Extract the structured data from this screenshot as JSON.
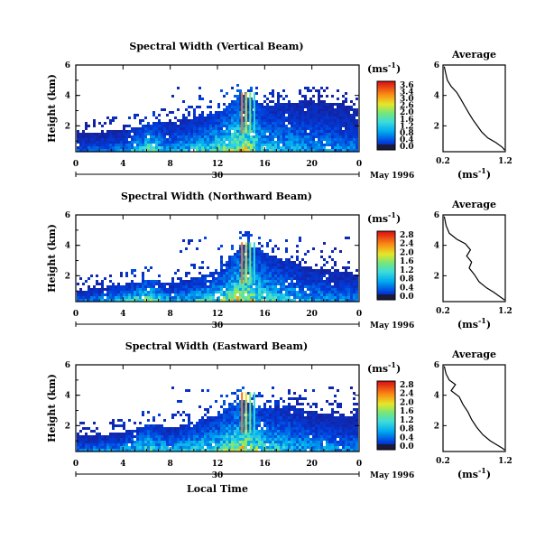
{
  "chart_data": [
    {
      "type": "heatmap",
      "title": "Spectral Width (Vertical Beam)",
      "ylabel": "Height (km)",
      "yticks": [
        "2",
        "4",
        "6"
      ],
      "ylim": [
        0.3,
        6.0
      ],
      "xticks": [
        "0",
        "4",
        "8",
        "12",
        "16",
        "20",
        "0"
      ],
      "xlim": [
        0,
        24
      ],
      "date_axis_label": "30",
      "date_text": "May 1996",
      "colorbar": {
        "unit": "(ms",
        "unit_sup": "-1",
        "unit_close": ")",
        "ticks": [
          "3.6",
          "3.4",
          "3.0",
          "2.6",
          "2.0",
          "1.6",
          "1.2",
          "0.8",
          "0.4",
          "0.0"
        ]
      },
      "echo_top_km": [
        {
          "t": 0,
          "h": 1.6
        },
        {
          "t": 2,
          "h": 1.7
        },
        {
          "t": 4,
          "h": 1.8
        },
        {
          "t": 6,
          "h": 2.2
        },
        {
          "t": 8,
          "h": 2.4
        },
        {
          "t": 10,
          "h": 2.6
        },
        {
          "t": 12,
          "h": 3.0
        },
        {
          "t": 14,
          "h": 4.2
        },
        {
          "t": 16,
          "h": 3.4
        },
        {
          "t": 18,
          "h": 3.6
        },
        {
          "t": 20,
          "h": 3.8
        },
        {
          "t": 22,
          "h": 3.6
        },
        {
          "t": 24,
          "h": 3.2
        }
      ],
      "width_peak_ms": [
        {
          "t": 0,
          "w": 1.0
        },
        {
          "t": 4,
          "w": 1.4
        },
        {
          "t": 6,
          "w": 2.8
        },
        {
          "t": 8,
          "w": 1.6
        },
        {
          "t": 12,
          "w": 2.6
        },
        {
          "t": 14,
          "w": 3.6
        },
        {
          "t": 16,
          "w": 2.0
        },
        {
          "t": 20,
          "w": 1.4
        },
        {
          "t": 24,
          "w": 1.2
        }
      ],
      "average": {
        "title": "Average",
        "xlabel": "(ms",
        "xlabel_sup": "-1",
        "xlabel_close": ")",
        "xticks": [
          "0.2",
          "1.2"
        ],
        "xlim": [
          0.2,
          1.2
        ],
        "yticks": [
          "2",
          "4",
          "6"
        ],
        "ylim": [
          0.3,
          6.0
        ],
        "profile": [
          {
            "w": 0.22,
            "h": 5.9
          },
          {
            "w": 0.24,
            "h": 5.5
          },
          {
            "w": 0.27,
            "h": 5.0
          },
          {
            "w": 0.33,
            "h": 4.6
          },
          {
            "w": 0.42,
            "h": 4.2
          },
          {
            "w": 0.48,
            "h": 3.8
          },
          {
            "w": 0.55,
            "h": 3.3
          },
          {
            "w": 0.62,
            "h": 2.8
          },
          {
            "w": 0.68,
            "h": 2.4
          },
          {
            "w": 0.75,
            "h": 2.0
          },
          {
            "w": 0.82,
            "h": 1.6
          },
          {
            "w": 0.92,
            "h": 1.2
          },
          {
            "w": 1.05,
            "h": 0.9
          },
          {
            "w": 1.15,
            "h": 0.6
          },
          {
            "w": 1.19,
            "h": 0.4
          }
        ]
      }
    },
    {
      "type": "heatmap",
      "title": "Spectral Width (Northward Beam)",
      "ylabel": "Height (km)",
      "yticks": [
        "2",
        "4",
        "6"
      ],
      "ylim": [
        0.3,
        6.0
      ],
      "xticks": [
        "0",
        "4",
        "8",
        "12",
        "16",
        "20",
        "0"
      ],
      "xlim": [
        0,
        24
      ],
      "date_axis_label": "30",
      "date_text": "May 1996",
      "colorbar": {
        "unit": "(ms",
        "unit_sup": "-1",
        "unit_close": ")",
        "ticks": [
          "2.8",
          "2.4",
          "2.0",
          "1.6",
          "1.2",
          "0.8",
          "0.4",
          "0.0"
        ]
      },
      "echo_top_km": [
        {
          "t": 0,
          "h": 1.1
        },
        {
          "t": 2,
          "h": 1.3
        },
        {
          "t": 4,
          "h": 1.5
        },
        {
          "t": 6,
          "h": 1.8
        },
        {
          "t": 8,
          "h": 1.6
        },
        {
          "t": 10,
          "h": 2.0
        },
        {
          "t": 12,
          "h": 2.4
        },
        {
          "t": 14,
          "h": 4.2
        },
        {
          "t": 16,
          "h": 3.6
        },
        {
          "t": 18,
          "h": 3.0
        },
        {
          "t": 20,
          "h": 2.6
        },
        {
          "t": 22,
          "h": 2.4
        },
        {
          "t": 24,
          "h": 2.2
        }
      ],
      "width_peak_ms": [
        {
          "t": 0,
          "w": 1.0
        },
        {
          "t": 4,
          "w": 1.6
        },
        {
          "t": 6,
          "w": 2.6
        },
        {
          "t": 8,
          "w": 1.4
        },
        {
          "t": 12,
          "w": 2.0
        },
        {
          "t": 14,
          "w": 2.8
        },
        {
          "t": 16,
          "w": 1.8
        },
        {
          "t": 20,
          "w": 1.2
        },
        {
          "t": 24,
          "w": 1.0
        }
      ],
      "average": {
        "title": "Average",
        "xlabel": "(ms",
        "xlabel_sup": "-1",
        "xlabel_close": ")",
        "xticks": [
          "0.2",
          "1.2"
        ],
        "xlim": [
          0.2,
          1.2
        ],
        "yticks": [
          "2",
          "4",
          "6"
        ],
        "ylim": [
          0.3,
          6.0
        ],
        "profile": [
          {
            "w": 0.22,
            "h": 5.9
          },
          {
            "w": 0.25,
            "h": 5.3
          },
          {
            "w": 0.3,
            "h": 4.8
          },
          {
            "w": 0.42,
            "h": 4.4
          },
          {
            "w": 0.56,
            "h": 4.1
          },
          {
            "w": 0.64,
            "h": 3.7
          },
          {
            "w": 0.58,
            "h": 3.3
          },
          {
            "w": 0.66,
            "h": 2.9
          },
          {
            "w": 0.62,
            "h": 2.5
          },
          {
            "w": 0.7,
            "h": 2.1
          },
          {
            "w": 0.78,
            "h": 1.6
          },
          {
            "w": 0.9,
            "h": 1.2
          },
          {
            "w": 1.02,
            "h": 0.9
          },
          {
            "w": 1.12,
            "h": 0.6
          },
          {
            "w": 1.19,
            "h": 0.4
          }
        ]
      }
    },
    {
      "type": "heatmap",
      "title": "Spectral Width (Eastward Beam)",
      "ylabel": "Height (km)",
      "yticks": [
        "2",
        "4",
        "6"
      ],
      "ylim": [
        0.3,
        6.0
      ],
      "xticks": [
        "0",
        "4",
        "8",
        "12",
        "16",
        "20",
        "0"
      ],
      "xlim": [
        0,
        24
      ],
      "xlabel": "Local Time",
      "date_axis_label": "30",
      "date_text": "May 1996",
      "colorbar": {
        "unit": "(ms",
        "unit_sup": "-1",
        "unit_close": ")",
        "ticks": [
          "2.8",
          "2.4",
          "2.0",
          "1.6",
          "1.2",
          "0.8",
          "0.4",
          "0.0"
        ]
      },
      "echo_top_km": [
        {
          "t": 0,
          "h": 1.4
        },
        {
          "t": 2,
          "h": 1.5
        },
        {
          "t": 4,
          "h": 1.6
        },
        {
          "t": 6,
          "h": 2.2
        },
        {
          "t": 8,
          "h": 2.0
        },
        {
          "t": 10,
          "h": 2.4
        },
        {
          "t": 12,
          "h": 2.8
        },
        {
          "t": 14,
          "h": 3.8
        },
        {
          "t": 16,
          "h": 3.2
        },
        {
          "t": 18,
          "h": 3.4
        },
        {
          "t": 20,
          "h": 3.0
        },
        {
          "t": 22,
          "h": 2.8
        },
        {
          "t": 24,
          "h": 2.6
        }
      ],
      "width_peak_ms": [
        {
          "t": 0,
          "w": 1.0
        },
        {
          "t": 4,
          "w": 1.4
        },
        {
          "t": 6,
          "w": 2.0
        },
        {
          "t": 8,
          "w": 1.4
        },
        {
          "t": 12,
          "w": 2.0
        },
        {
          "t": 14,
          "w": 2.8
        },
        {
          "t": 16,
          "w": 1.8
        },
        {
          "t": 20,
          "w": 1.2
        },
        {
          "t": 24,
          "w": 1.0
        }
      ],
      "average": {
        "title": "Average",
        "xlabel": "(ms",
        "xlabel_sup": "-1",
        "xlabel_close": ")",
        "xticks": [
          "0.2",
          "1.2"
        ],
        "xlim": [
          0.2,
          1.2
        ],
        "yticks": [
          "2",
          "4",
          "6"
        ],
        "ylim": [
          0.3,
          6.0
        ],
        "profile": [
          {
            "w": 0.22,
            "h": 5.9
          },
          {
            "w": 0.25,
            "h": 5.4
          },
          {
            "w": 0.3,
            "h": 5.0
          },
          {
            "w": 0.4,
            "h": 4.7
          },
          {
            "w": 0.33,
            "h": 4.3
          },
          {
            "w": 0.46,
            "h": 3.9
          },
          {
            "w": 0.52,
            "h": 3.4
          },
          {
            "w": 0.6,
            "h": 2.9
          },
          {
            "w": 0.66,
            "h": 2.4
          },
          {
            "w": 0.74,
            "h": 1.9
          },
          {
            "w": 0.84,
            "h": 1.4
          },
          {
            "w": 0.96,
            "h": 1.0
          },
          {
            "w": 1.08,
            "h": 0.7
          },
          {
            "w": 1.16,
            "h": 0.5
          },
          {
            "w": 1.19,
            "h": 0.4
          }
        ]
      }
    }
  ]
}
